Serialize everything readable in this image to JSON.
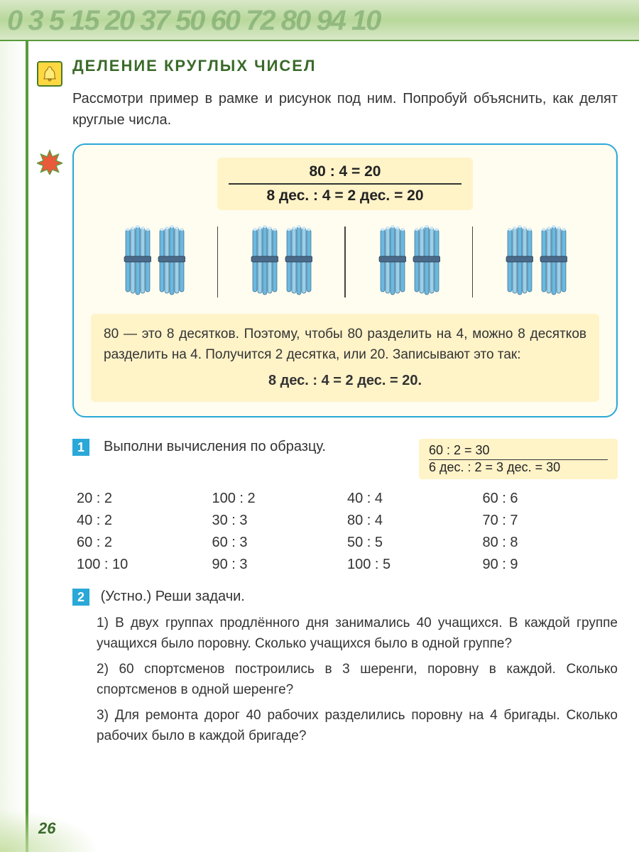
{
  "header": {
    "decorative_numbers": "0 3 5 15 20 37 50 60 72 80 94 10"
  },
  "title": "ДЕЛЕНИЕ  КРУГЛЫХ  ЧИСЕЛ",
  "intro": "Рассмотри пример в рамке и рисунок под ним. Попробуй объяснить, как делят круглые числа.",
  "example": {
    "formula_top": "80 : 4 = 20",
    "formula_bottom": "8 дес. : 4 = 2 дес. = 20",
    "bundle_groups": 4,
    "bundles_per_group": 2,
    "bundle_color": "#6bb8e0",
    "bundle_band_color": "#4a6a8a",
    "explanation": "80 — это 8 десятков. Поэтому, чтобы 80 разделить на 4, можно 8 десятков разделить на 4. Получится 2 десятка, или 20. Записывают это так:",
    "explanation_formula": "8 дес. : 4 = 2 дес. = 20."
  },
  "task1": {
    "number": "1",
    "text": "Выполни вычисления по образцу.",
    "example_line1": "60 : 2 = 30",
    "example_line2": "6 дес. : 2 = 3 дес. = 30",
    "columns": [
      [
        "20 : 2",
        "40 : 2",
        "60 : 2",
        "100 : 10"
      ],
      [
        "100 : 2",
        "30 : 3",
        "60 : 3",
        "90 : 3"
      ],
      [
        "40 : 4",
        "80 : 4",
        "50 : 5",
        "100 : 5"
      ],
      [
        "60 : 6",
        "70 : 7",
        "80 : 8",
        "90 : 9"
      ]
    ]
  },
  "task2": {
    "number": "2",
    "title": "(Устно.) Реши задачи.",
    "problems": [
      "1) В двух группах продлённого дня занимались 40 учащихся. В каждой группе учащихся было поровну. Сколько учащихся было в одной группе?",
      "2) 60 спортсменов построились в 3 шеренги, поровну в каждой. Сколько спортсменов в одной шеренге?",
      "3) Для ремонта дорог 40 рабочих разделились поровну на 4 бригады. Сколько рабочих было в каждой бригаде?"
    ]
  },
  "page_number": "26",
  "colors": {
    "green_accent": "#5a9b3a",
    "title_green": "#3a6a2a",
    "box_border": "#2aa8d8",
    "box_bg": "#fffdf0",
    "highlight_bg": "#fff3c8",
    "task_badge": "#2aa8d8"
  }
}
